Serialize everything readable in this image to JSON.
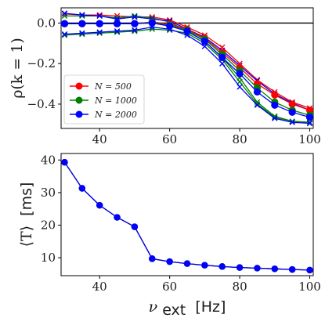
{
  "chart_data": [
    {
      "type": "line",
      "ylabel": "ρ(k = 1)",
      "xlim": [
        29,
        101
      ],
      "ylim": [
        -0.52,
        0.075
      ],
      "xticks": [
        40,
        60,
        80,
        100
      ],
      "yticks": [
        0.0,
        -0.2,
        -0.4
      ],
      "ytick_labels": [
        "0.0",
        "−0.2",
        "−0.4"
      ],
      "reference_line": 0.0,
      "legend": {
        "placement": "lower-left",
        "entries": [
          "N = 500",
          "N = 1000",
          "N = 2000"
        ]
      },
      "x": [
        30,
        35,
        40,
        45,
        50,
        55,
        60,
        65,
        70,
        75,
        80,
        85,
        90,
        95,
        100
      ],
      "series": [
        {
          "name": "N = 500",
          "color": "#ff0000",
          "marker": "circle",
          "values": [
            -0.003,
            -0.003,
            -0.003,
            -0.003,
            -0.003,
            0.005,
            -0.005,
            -0.03,
            -0.075,
            -0.145,
            -0.22,
            -0.3,
            -0.355,
            -0.4,
            -0.43
          ]
        },
        {
          "name": "N = 1000",
          "color": "#008000",
          "marker": "circle",
          "values": [
            -0.003,
            -0.003,
            -0.003,
            -0.003,
            -0.003,
            0.003,
            -0.01,
            -0.035,
            -0.08,
            -0.155,
            -0.235,
            -0.32,
            -0.39,
            -0.43,
            -0.455
          ]
        },
        {
          "name": "N = 2000",
          "color": "#0000ff",
          "marker": "circle",
          "values": [
            -0.003,
            -0.003,
            -0.003,
            -0.003,
            -0.003,
            0.0,
            -0.015,
            -0.04,
            -0.09,
            -0.17,
            -0.25,
            -0.34,
            -0.405,
            -0.44,
            -0.465
          ]
        },
        {
          "name": "",
          "color": "#ff0000",
          "marker": "x",
          "values": [
            0.045,
            0.04,
            0.04,
            0.035,
            0.03,
            0.03,
            0.015,
            -0.02,
            -0.06,
            -0.12,
            -0.2,
            -0.28,
            -0.34,
            -0.39,
            -0.42
          ]
        },
        {
          "name": "",
          "color": "#008000",
          "marker": "x",
          "values": [
            0.035,
            0.035,
            0.035,
            0.025,
            0.035,
            0.025,
            0.005,
            -0.04,
            -0.09,
            -0.17,
            -0.27,
            -0.39,
            -0.46,
            -0.485,
            -0.49
          ]
        },
        {
          "name": "",
          "color": "#0000ff",
          "marker": "x",
          "values": [
            0.048,
            0.04,
            0.035,
            0.02,
            0.03,
            0.02,
            0.01,
            -0.03,
            -0.07,
            -0.135,
            -0.21,
            -0.285,
            -0.35,
            -0.395,
            -0.43
          ]
        },
        {
          "name": "",
          "color": "#008000",
          "marker": "x",
          "values": [
            -0.06,
            -0.055,
            -0.05,
            -0.045,
            -0.04,
            -0.03,
            -0.035,
            -0.05,
            -0.1,
            -0.18,
            -0.29,
            -0.4,
            -0.465,
            -0.485,
            -0.49
          ]
        },
        {
          "name": "",
          "color": "#0000ff",
          "marker": "x",
          "values": [
            -0.055,
            -0.05,
            -0.045,
            -0.04,
            -0.035,
            -0.02,
            -0.03,
            -0.06,
            -0.115,
            -0.2,
            -0.315,
            -0.405,
            -0.47,
            -0.49,
            -0.495
          ]
        }
      ]
    },
    {
      "type": "line",
      "xlabel": "ν",
      "xlabel_sub": "ext",
      "xlabel_unit": "[Hz]",
      "ylabel": "⟨T⟩",
      "ylabel_unit": "[ms]",
      "xlim": [
        29,
        101
      ],
      "ylim": [
        4.5,
        42
      ],
      "xticks": [
        40,
        60,
        80,
        100
      ],
      "yticks": [
        10,
        20,
        30,
        40
      ],
      "x": [
        30,
        35,
        40,
        45,
        50,
        55,
        60,
        65,
        70,
        75,
        80,
        85,
        90,
        95,
        100
      ],
      "series": [
        {
          "name": "N = 500",
          "color": "#ff0000",
          "values": [
            39.3,
            31.3,
            26.1,
            22.4,
            19.5,
            9.7,
            8.8,
            8.2,
            7.7,
            7.3,
            7.0,
            6.8,
            6.6,
            6.4,
            6.2
          ]
        },
        {
          "name": "N = 1000",
          "color": "#008000",
          "values": [
            39.3,
            31.3,
            26.1,
            22.4,
            19.5,
            9.7,
            8.8,
            8.2,
            7.7,
            7.3,
            7.0,
            6.8,
            6.6,
            6.4,
            6.2
          ]
        },
        {
          "name": "N = 2000",
          "color": "#0000ff",
          "values": [
            39.3,
            31.3,
            26.1,
            22.4,
            19.5,
            9.7,
            8.8,
            8.2,
            7.7,
            7.3,
            7.0,
            6.8,
            6.6,
            6.4,
            6.2
          ]
        }
      ]
    }
  ]
}
